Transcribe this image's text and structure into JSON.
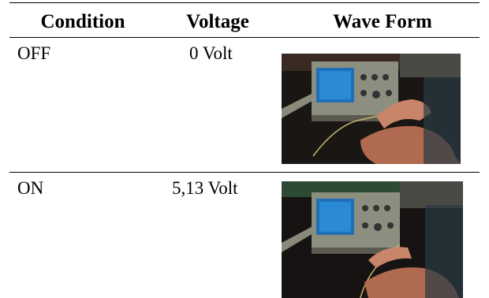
{
  "table": {
    "header": [
      "Condition",
      "Voltage",
      "Wave Form"
    ],
    "rows": [
      [
        "OFF",
        "0 Volt"
      ],
      [
        "ON",
        "5,13 Volt"
      ]
    ]
  }
}
